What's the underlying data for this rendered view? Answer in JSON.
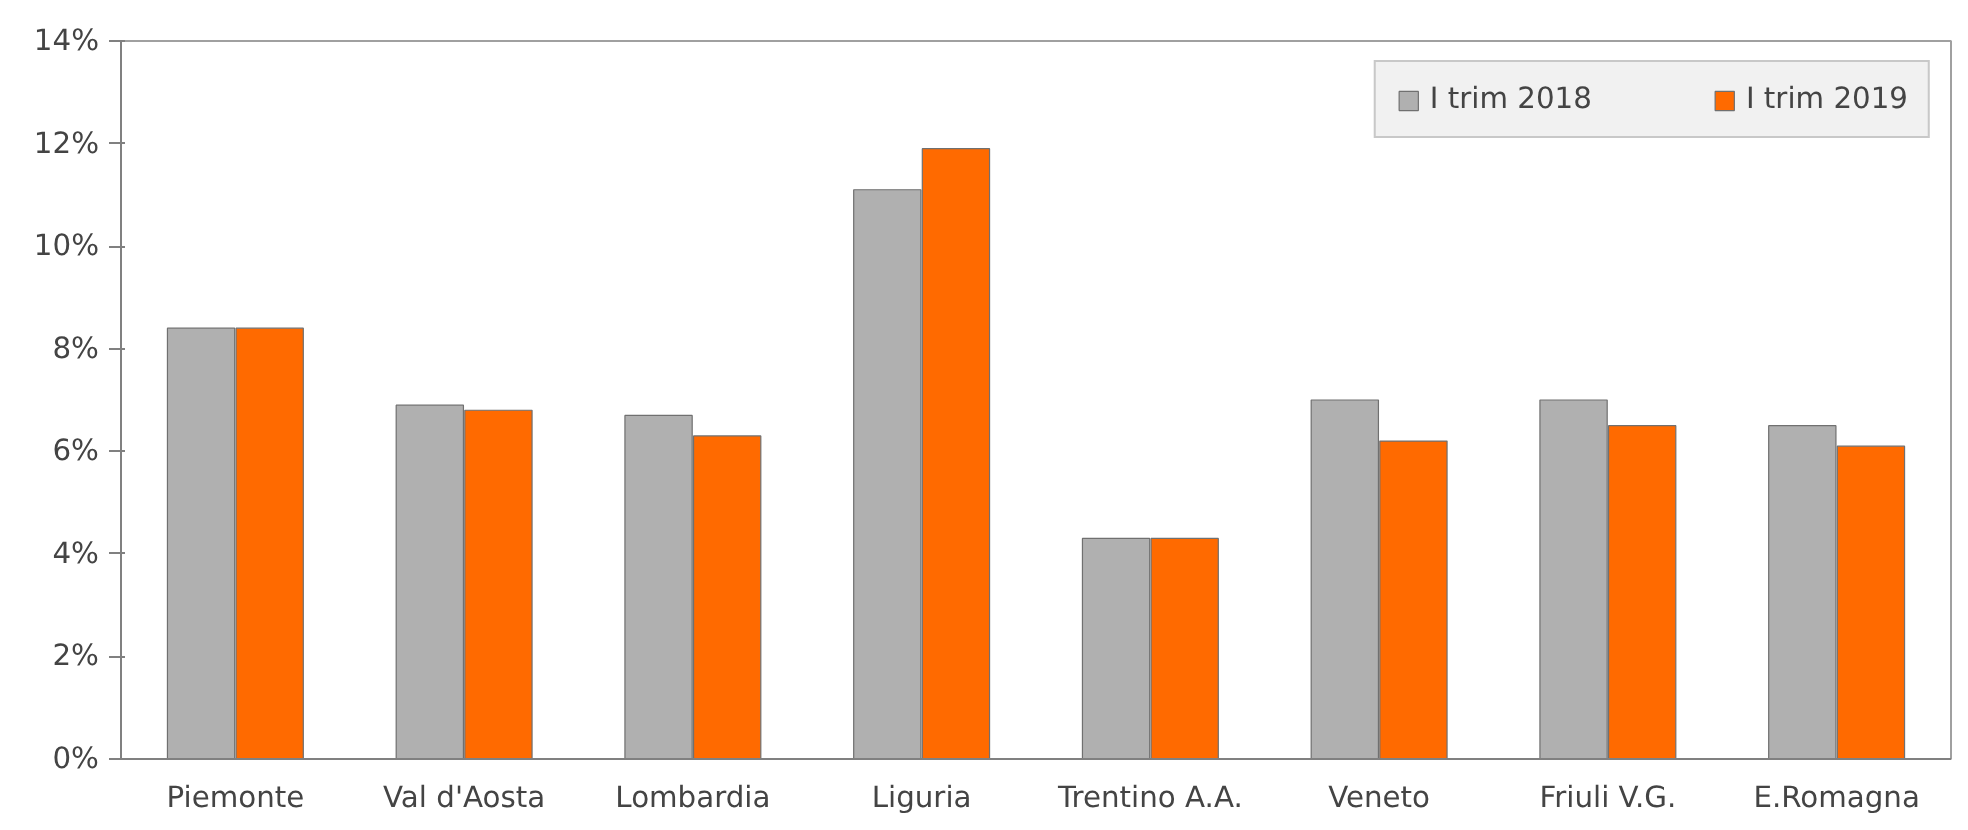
{
  "chart_data": {
    "type": "bar",
    "categories": [
      "Piemonte",
      "Val d'Aosta",
      "Lombardia",
      "Liguria",
      "Trentino A.A.",
      "Veneto",
      "Friuli V.G.",
      "E.Romagna"
    ],
    "series": [
      {
        "name": "I trim 2018",
        "color": "#b0b0b0",
        "values": [
          8.4,
          6.9,
          6.7,
          11.1,
          4.3,
          7.0,
          7.0,
          6.5
        ]
      },
      {
        "name": "I trim 2019",
        "color": "#ff6a00",
        "values": [
          8.4,
          6.8,
          6.3,
          11.9,
          4.3,
          6.2,
          6.5,
          6.1
        ]
      }
    ],
    "ylim": [
      0,
      14
    ],
    "yticks": [
      {
        "value": 0,
        "label": "0%"
      },
      {
        "value": 2,
        "label": "2%"
      },
      {
        "value": 4,
        "label": "4%"
      },
      {
        "value": 6,
        "label": "6%"
      },
      {
        "value": 8,
        "label": "8%"
      },
      {
        "value": 10,
        "label": "10%"
      },
      {
        "value": 12,
        "label": "12%"
      },
      {
        "value": 14,
        "label": "14%"
      }
    ],
    "grid": false,
    "legend": "top right"
  }
}
